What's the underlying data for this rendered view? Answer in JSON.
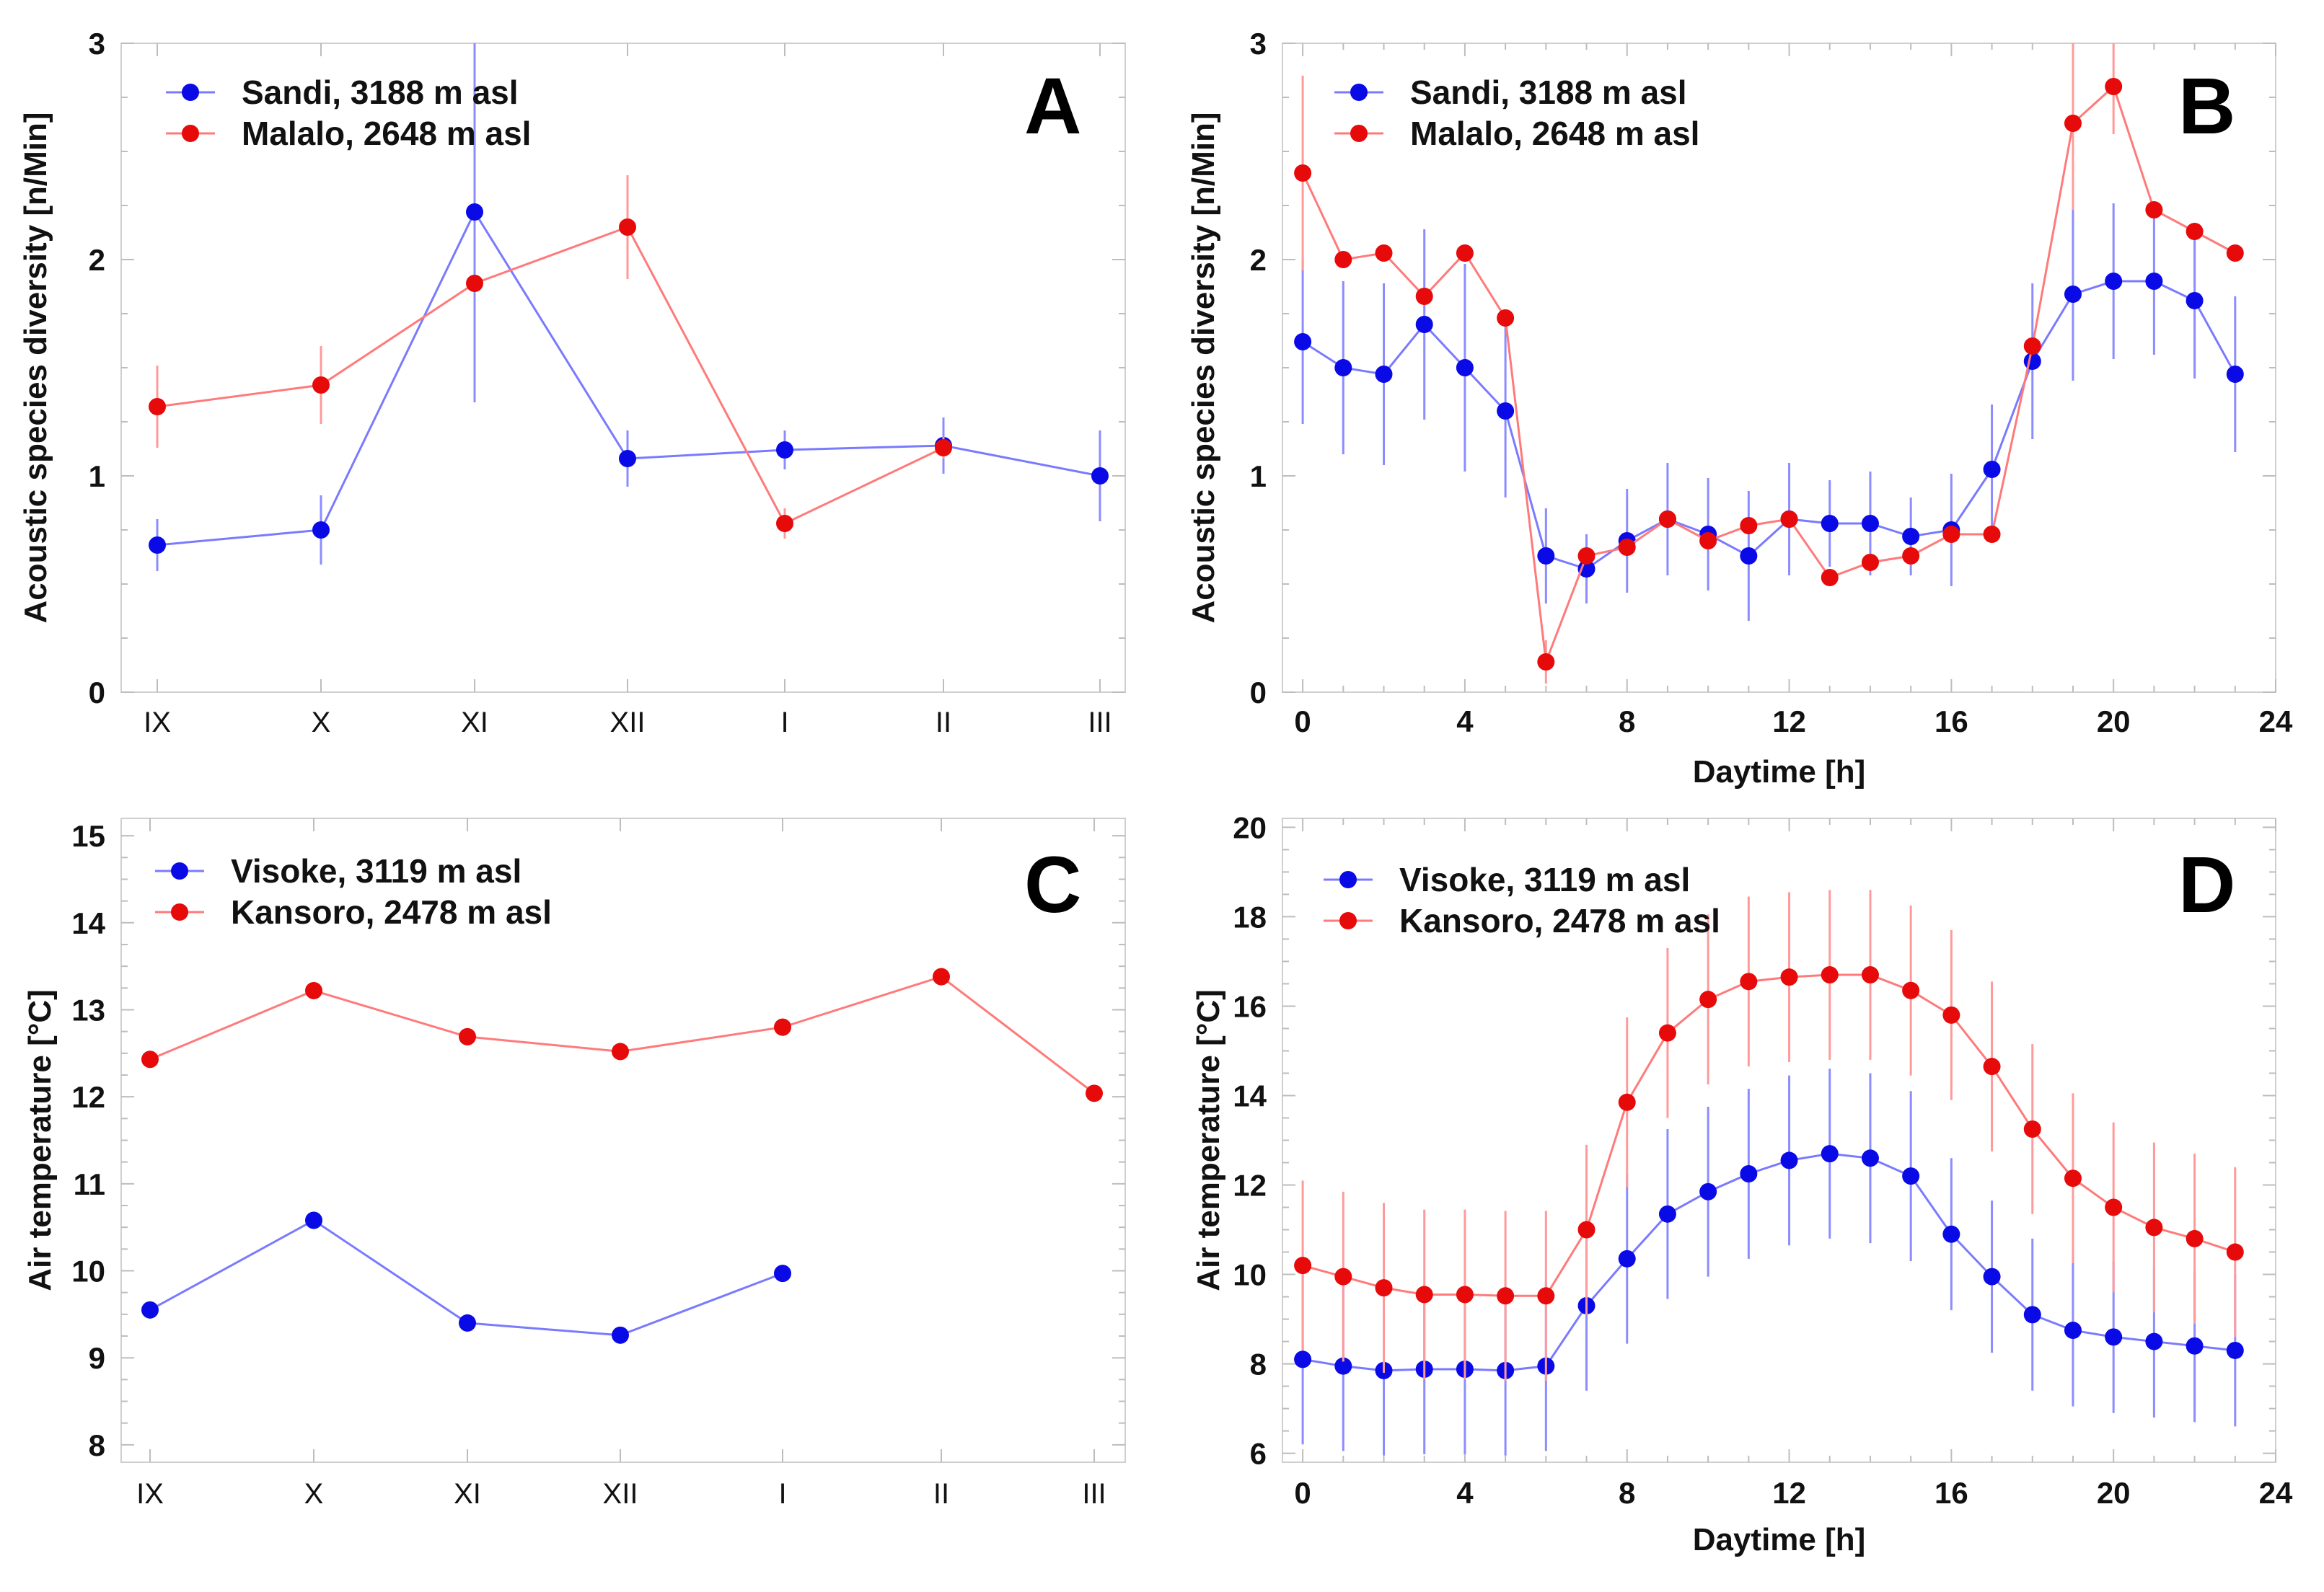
{
  "colors": {
    "blue": "#0a0ae6",
    "red": "#e60a0a",
    "blue_line": "#7a7aff",
    "red_line": "#ff7a7a",
    "errbar_blue": "#8c8cff",
    "errbar_red": "#ff9a9a"
  },
  "chart_data": [
    {
      "id": "A",
      "type": "line",
      "panel_letter": "A",
      "xlabel": "",
      "ylabel": "Acoustic species diversity [n/Min]",
      "categories": [
        "IX",
        "X",
        "XI",
        "XII",
        "I",
        "II",
        "III"
      ],
      "ylim": [
        0,
        3
      ],
      "yticks": [
        0,
        1,
        2,
        3
      ],
      "ytick_labels": [
        "0",
        "1",
        "2",
        "3"
      ],
      "series": [
        {
          "name": "Sandi, 3188 m asl",
          "color": "blue",
          "values": [
            0.68,
            0.75,
            2.22,
            1.08,
            1.12,
            1.14,
            1.0
          ],
          "errors": [
            0.12,
            0.16,
            0.88,
            0.13,
            0.09,
            0.13,
            0.21
          ]
        },
        {
          "name": "Malalo, 2648 m asl",
          "color": "red",
          "values": [
            1.32,
            1.42,
            1.89,
            2.15,
            0.78,
            1.13,
            null
          ],
          "errors": [
            0.19,
            0.18,
            0.0,
            0.24,
            0.07,
            0.05,
            null
          ]
        }
      ]
    },
    {
      "id": "B",
      "type": "line",
      "panel_letter": "B",
      "xlabel": "Daytime [h]",
      "ylabel": "Acoustic species diversity [n/Min]",
      "xlim": [
        -0.5,
        24
      ],
      "xticks": [
        0,
        4,
        8,
        12,
        16,
        20,
        24
      ],
      "xtick_labels": [
        "0",
        "4",
        "8",
        "12",
        "16",
        "20",
        "24"
      ],
      "ylim": [
        0,
        3
      ],
      "yticks": [
        0,
        1,
        2,
        3
      ],
      "ytick_labels": [
        "0",
        "1",
        "2",
        "3"
      ],
      "x": [
        0,
        1,
        2,
        3,
        4,
        5,
        6,
        7,
        8,
        9,
        10,
        11,
        12,
        13,
        14,
        15,
        16,
        17,
        18,
        19,
        20,
        21,
        22,
        23
      ],
      "series": [
        {
          "name": "Sandi, 3188 m asl",
          "color": "blue",
          "values": [
            1.62,
            1.5,
            1.47,
            1.7,
            1.5,
            1.3,
            0.63,
            0.57,
            0.7,
            0.8,
            0.73,
            0.63,
            0.8,
            0.78,
            0.78,
            0.72,
            0.75,
            1.03,
            1.53,
            1.84,
            1.9,
            1.9,
            1.81,
            1.47
          ],
          "errors": [
            0.38,
            0.4,
            0.42,
            0.44,
            0.48,
            0.4,
            0.22,
            0.16,
            0.24,
            0.26,
            0.26,
            0.3,
            0.26,
            0.2,
            0.24,
            0.18,
            0.26,
            0.3,
            0.36,
            0.4,
            0.36,
            0.34,
            0.36,
            0.36
          ]
        },
        {
          "name": "Malalo, 2648 m asl",
          "color": "red",
          "values": [
            2.4,
            2.0,
            2.03,
            1.83,
            2.03,
            1.73,
            0.14,
            0.63,
            0.67,
            0.8,
            0.7,
            0.77,
            0.8,
            0.53,
            0.6,
            0.63,
            0.73,
            0.73,
            1.6,
            2.63,
            2.8,
            2.23,
            2.13,
            2.03
          ],
          "errors": [
            0.45,
            0.0,
            0.0,
            0.0,
            0.0,
            0.0,
            0.1,
            0.0,
            0.0,
            0.0,
            0.0,
            0.0,
            0.0,
            0.0,
            0.0,
            0.0,
            0.0,
            0.0,
            0.0,
            0.4,
            0.22,
            0.0,
            0.0,
            0.0
          ]
        }
      ]
    },
    {
      "id": "C",
      "type": "line",
      "panel_letter": "C",
      "xlabel": "",
      "ylabel": "Air temperature [°C]",
      "categories": [
        "IX",
        "X",
        "XI",
        "XII",
        "I",
        "II",
        "III"
      ],
      "ylim": [
        7.8,
        15.2
      ],
      "yticks": [
        8,
        9,
        10,
        11,
        12,
        13,
        14,
        15
      ],
      "ytick_labels": [
        "8",
        "9",
        "10",
        "11",
        "12",
        "13",
        "14",
        "15"
      ],
      "series": [
        {
          "name": "Visoke, 3119 m asl",
          "color": "blue",
          "values": [
            9.55,
            10.58,
            9.4,
            9.26,
            9.97,
            null,
            null
          ],
          "errors": [
            0.1,
            0.1,
            0.1,
            0.08,
            0.08,
            null,
            null
          ]
        },
        {
          "name": "Kansoro, 2478 m asl",
          "color": "red",
          "values": [
            12.43,
            13.22,
            12.69,
            12.52,
            12.8,
            13.38,
            12.04
          ],
          "errors": [
            0.1,
            0.1,
            0.1,
            0.1,
            0.1,
            0.1,
            0.08
          ]
        }
      ]
    },
    {
      "id": "D",
      "type": "line",
      "panel_letter": "D",
      "xlabel": "Daytime [h]",
      "ylabel": "Air temperature [°C]",
      "xlim": [
        -0.5,
        24
      ],
      "xticks": [
        0,
        4,
        8,
        12,
        16,
        20,
        24
      ],
      "xtick_labels": [
        "0",
        "4",
        "8",
        "12",
        "16",
        "20",
        "24"
      ],
      "ylim": [
        5.8,
        20.2
      ],
      "yticks": [
        6,
        8,
        10,
        12,
        14,
        16,
        18,
        20
      ],
      "ytick_labels": [
        "6",
        "8",
        "10",
        "12",
        "14",
        "16",
        "18",
        "20"
      ],
      "x": [
        0,
        1,
        2,
        3,
        4,
        5,
        6,
        7,
        8,
        9,
        10,
        11,
        12,
        13,
        14,
        15,
        16,
        17,
        18,
        19,
        20,
        21,
        22,
        23
      ],
      "series": [
        {
          "name": "Visoke, 3119 m asl",
          "color": "blue",
          "values": [
            8.1,
            7.95,
            7.85,
            7.88,
            7.88,
            7.85,
            7.95,
            9.3,
            10.35,
            11.35,
            11.85,
            12.25,
            12.55,
            12.7,
            12.6,
            12.2,
            10.9,
            9.95,
            9.1,
            8.75,
            8.6,
            8.5,
            8.4,
            8.3
          ],
          "errors": [
            1.9,
            1.9,
            1.9,
            1.9,
            1.9,
            1.9,
            1.9,
            1.9,
            1.9,
            1.9,
            1.9,
            1.9,
            1.9,
            1.9,
            1.9,
            1.9,
            1.7,
            1.7,
            1.7,
            1.7,
            1.7,
            1.7,
            1.7,
            1.7
          ]
        },
        {
          "name": "Kansoro, 2478 m asl",
          "color": "red",
          "values": [
            10.2,
            9.95,
            9.7,
            9.55,
            9.55,
            9.52,
            9.52,
            11.0,
            13.85,
            15.4,
            16.15,
            16.55,
            16.65,
            16.7,
            16.7,
            16.35,
            15.8,
            14.65,
            13.25,
            12.15,
            11.5,
            11.05,
            10.8,
            10.5
          ],
          "errors": [
            1.9,
            1.9,
            1.9,
            1.9,
            1.9,
            1.9,
            1.9,
            1.9,
            1.9,
            1.9,
            1.9,
            1.9,
            1.9,
            1.9,
            1.9,
            1.9,
            1.9,
            1.9,
            1.9,
            1.9,
            1.9,
            1.9,
            1.9,
            1.9
          ]
        }
      ]
    }
  ]
}
